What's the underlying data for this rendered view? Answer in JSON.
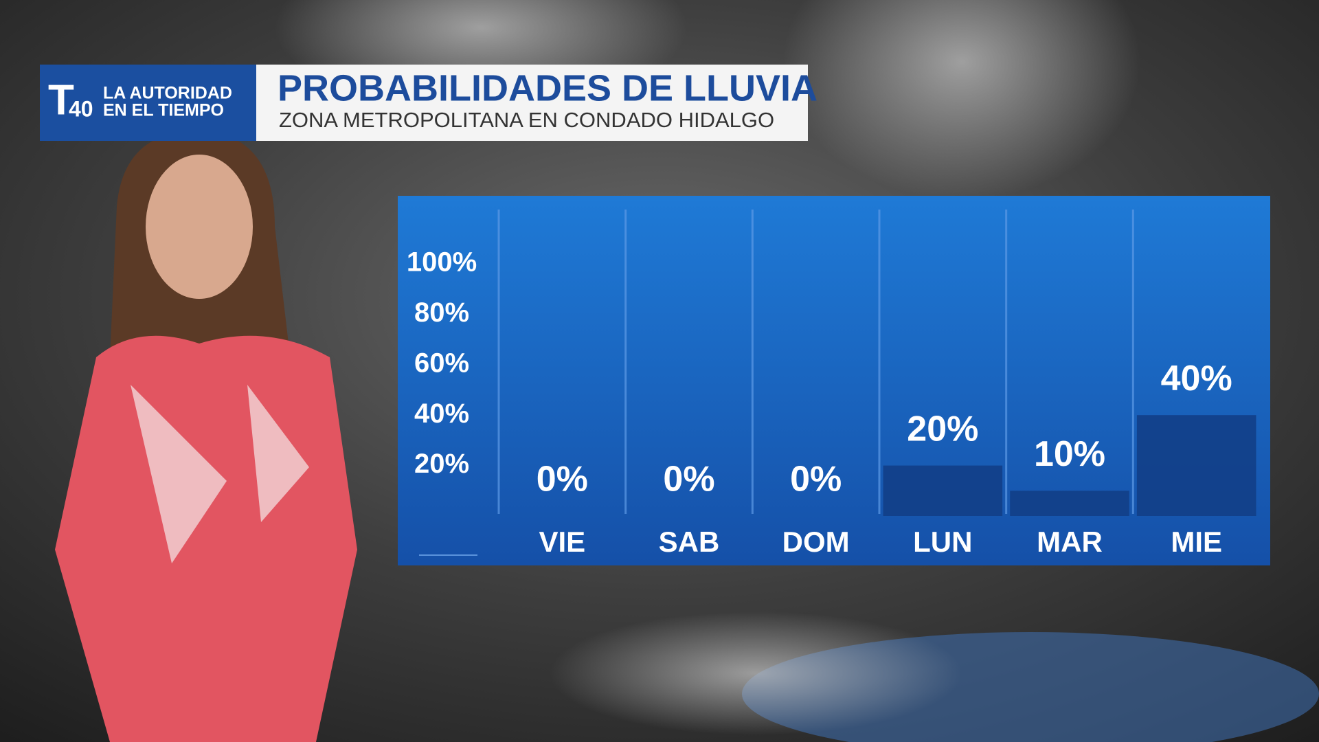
{
  "header": {
    "brand": [
      "LA AUTORIDAD",
      "EN EL TIEMPO"
    ],
    "channel": "40"
  },
  "chart_data": {
    "type": "bar",
    "title": "PROBABILIDADES DE LLUVIA",
    "subtitle": "ZONA METROPOLITANA EN CONDADO HIDALGO",
    "categories": [
      "VIE",
      "SAB",
      "DOM",
      "LUN",
      "MAR",
      "MIE"
    ],
    "values": [
      0,
      0,
      0,
      20,
      10,
      40
    ],
    "value_labels": [
      "0%",
      "0%",
      "0%",
      "20%",
      "10%",
      "40%"
    ],
    "color": "#123d85",
    "ylim": [
      0,
      100
    ],
    "yticks": [
      {
        "value": 20,
        "label": "20%"
      },
      {
        "value": 40,
        "label": "40%"
      },
      {
        "value": 60,
        "label": "60%"
      },
      {
        "value": 80,
        "label": "80%"
      },
      {
        "value": 100,
        "label": "100%"
      }
    ],
    "grid": false
  }
}
